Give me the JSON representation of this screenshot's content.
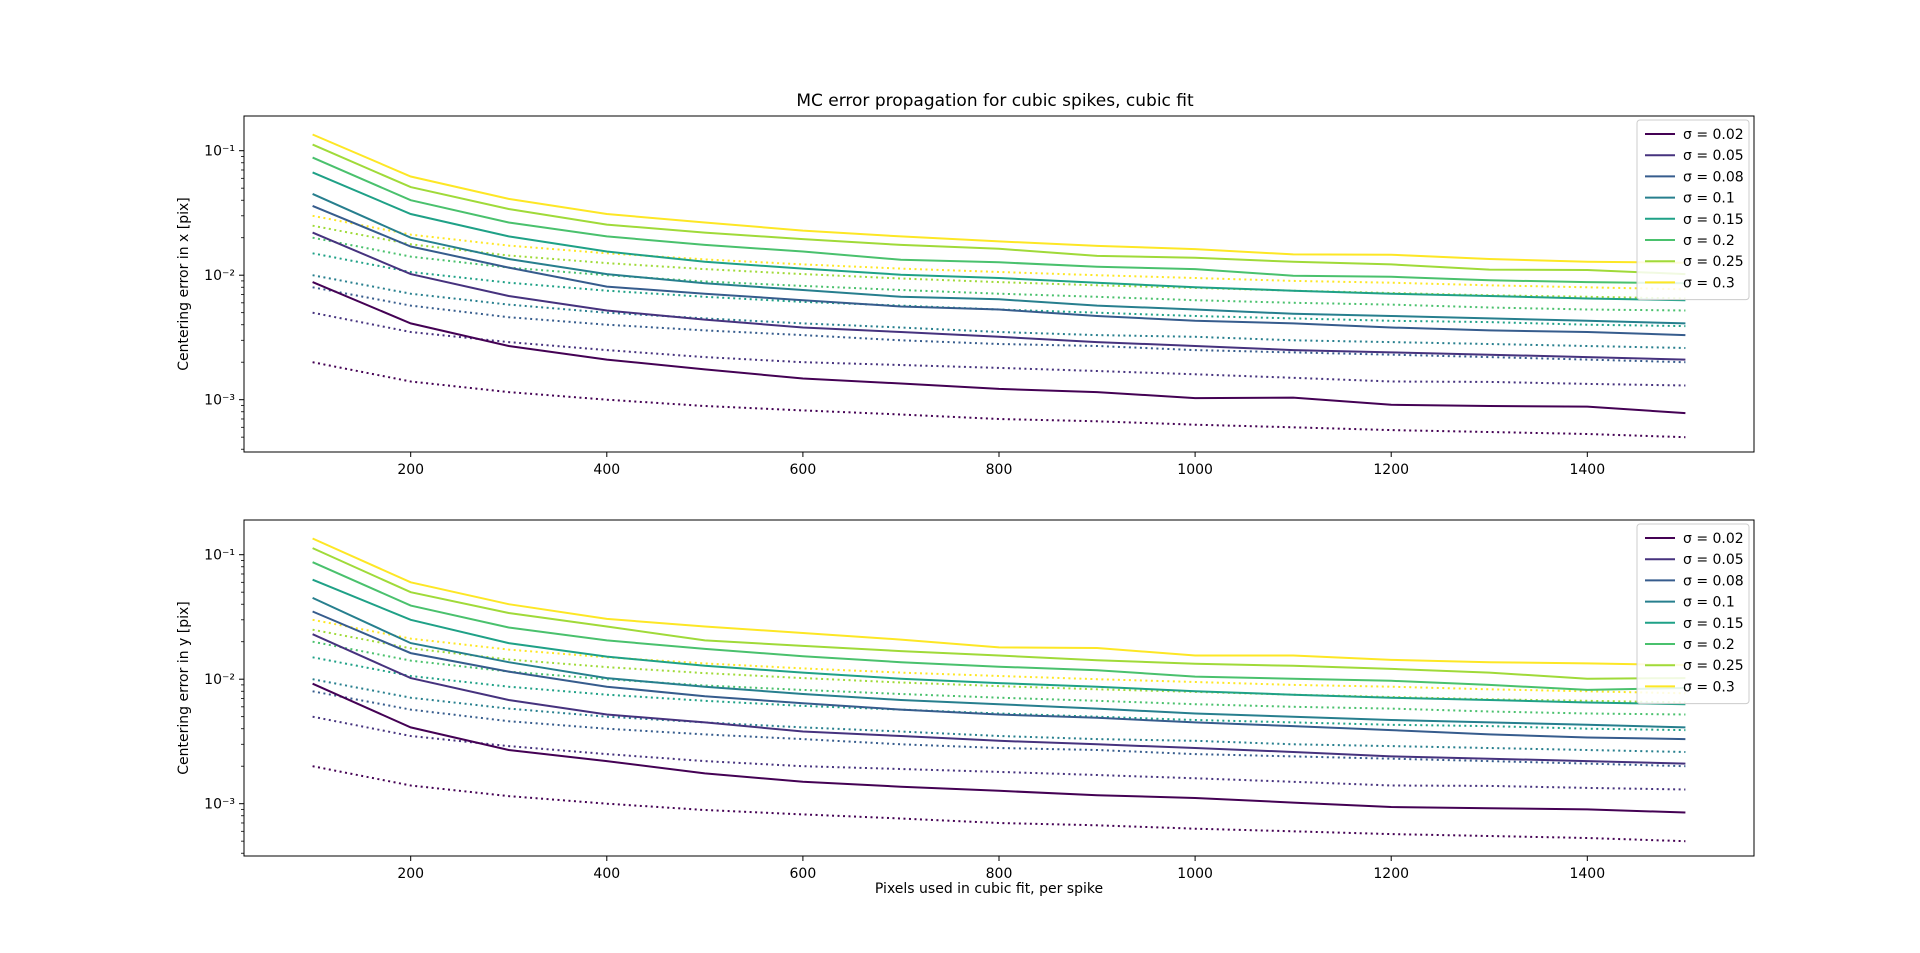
{
  "figure": {
    "title": "MC error propagation for cubic spikes, cubic fit",
    "xlabel": "Pixels used in cubic fit, per spike"
  },
  "chart_data": [
    {
      "type": "line",
      "title": "MC error propagation for cubic spikes, cubic fit",
      "xlabel": "",
      "ylabel": "Centering error in x [pix]",
      "yscale": "log",
      "xlim": [
        30,
        1570
      ],
      "ylim": [
        0.00038,
        0.19
      ],
      "xticks": [
        200,
        400,
        600,
        800,
        1000,
        1200,
        1400
      ],
      "yticks": [
        0.001,
        0.01,
        0.1
      ],
      "ytick_labels": [
        "10⁻³",
        "10⁻²",
        "10⁻¹"
      ],
      "grid": false,
      "legend_position": "top-right",
      "x": [
        100,
        200,
        300,
        400,
        500,
        600,
        700,
        800,
        900,
        1000,
        1100,
        1200,
        1300,
        1400,
        1500
      ],
      "series": [
        {
          "name": "σ = 0.02",
          "color": "#440154",
          "values": [
            0.0088,
            0.0041,
            0.0027,
            0.0021,
            0.00175,
            0.00148,
            0.00135,
            0.00122,
            0.00115,
            0.00103,
            0.00104,
            0.00091,
            0.00089,
            0.00088,
            0.00078
          ]
        },
        {
          "name": "σ = 0.05",
          "color": "#46327e",
          "values": [
            0.022,
            0.0102,
            0.0068,
            0.0052,
            0.0044,
            0.0038,
            0.0035,
            0.0032,
            0.0029,
            0.0027,
            0.0025,
            0.0024,
            0.0023,
            0.0022,
            0.0021
          ]
        },
        {
          "name": "σ = 0.08",
          "color": "#365c8d",
          "values": [
            0.036,
            0.017,
            0.0115,
            0.0081,
            0.0071,
            0.0063,
            0.0056,
            0.0053,
            0.0047,
            0.0043,
            0.0041,
            0.0038,
            0.0036,
            0.0035,
            0.0033
          ]
        },
        {
          "name": "σ = 0.1",
          "color": "#277f8e",
          "values": [
            0.045,
            0.02,
            0.0135,
            0.0102,
            0.0086,
            0.0076,
            0.0067,
            0.0064,
            0.0057,
            0.0053,
            0.0049,
            0.0047,
            0.0045,
            0.0043,
            0.0041
          ]
        },
        {
          "name": "σ = 0.15",
          "color": "#1fa187",
          "values": [
            0.067,
            0.031,
            0.0205,
            0.0155,
            0.0128,
            0.0113,
            0.0101,
            0.0095,
            0.0087,
            0.008,
            0.0075,
            0.0071,
            0.0068,
            0.0065,
            0.0063
          ]
        },
        {
          "name": "σ = 0.2",
          "color": "#4ac16d",
          "values": [
            0.088,
            0.04,
            0.0265,
            0.0205,
            0.0175,
            0.0155,
            0.0133,
            0.0127,
            0.0117,
            0.0112,
            0.0099,
            0.0097,
            0.0091,
            0.0088,
            0.0086
          ]
        },
        {
          "name": "σ = 0.25",
          "color": "#a0da39",
          "values": [
            0.112,
            0.051,
            0.034,
            0.0255,
            0.022,
            0.0195,
            0.0175,
            0.0163,
            0.0143,
            0.0138,
            0.0128,
            0.0122,
            0.0111,
            0.011,
            0.0102
          ]
        },
        {
          "name": "σ = 0.3",
          "color": "#fde725",
          "values": [
            0.135,
            0.062,
            0.041,
            0.031,
            0.0265,
            0.0228,
            0.0205,
            0.0187,
            0.0172,
            0.0162,
            0.0147,
            0.0146,
            0.0135,
            0.0128,
            0.0126
          ]
        }
      ],
      "dotted_series": [
        {
          "color": "#440154",
          "values": [
            0.002,
            0.0014,
            0.00115,
            0.001,
            0.00089,
            0.00082,
            0.00076,
            0.0007,
            0.00067,
            0.00063,
            0.0006,
            0.00057,
            0.00055,
            0.00053,
            0.0005
          ]
        },
        {
          "color": "#46327e",
          "values": [
            0.005,
            0.0035,
            0.0029,
            0.0025,
            0.0022,
            0.002,
            0.0019,
            0.0018,
            0.0017,
            0.0016,
            0.0015,
            0.0014,
            0.00139,
            0.00134,
            0.0013
          ]
        },
        {
          "color": "#365c8d",
          "values": [
            0.008,
            0.0057,
            0.0046,
            0.004,
            0.0036,
            0.0033,
            0.003,
            0.0028,
            0.0027,
            0.0025,
            0.0024,
            0.0023,
            0.0022,
            0.0021,
            0.002
          ]
        },
        {
          "color": "#277f8e",
          "values": [
            0.01,
            0.0071,
            0.0058,
            0.005,
            0.0045,
            0.0041,
            0.0038,
            0.0035,
            0.0033,
            0.0032,
            0.003,
            0.0029,
            0.0028,
            0.0027,
            0.0026
          ]
        },
        {
          "color": "#1fa187",
          "values": [
            0.015,
            0.0106,
            0.0087,
            0.0075,
            0.0067,
            0.0061,
            0.0057,
            0.0053,
            0.005,
            0.0047,
            0.0045,
            0.0043,
            0.0042,
            0.004,
            0.0039
          ]
        },
        {
          "color": "#4ac16d",
          "values": [
            0.02,
            0.0141,
            0.0115,
            0.01,
            0.0089,
            0.0082,
            0.0076,
            0.0071,
            0.0067,
            0.0063,
            0.006,
            0.0058,
            0.0055,
            0.0053,
            0.0052
          ]
        },
        {
          "color": "#a0da39",
          "values": [
            0.025,
            0.0177,
            0.0144,
            0.0125,
            0.0112,
            0.0102,
            0.0094,
            0.0088,
            0.0083,
            0.0079,
            0.0075,
            0.0072,
            0.0069,
            0.0067,
            0.0065
          ]
        },
        {
          "color": "#fde725",
          "values": [
            0.03,
            0.0212,
            0.0173,
            0.015,
            0.0134,
            0.0122,
            0.0113,
            0.0106,
            0.01,
            0.0095,
            0.009,
            0.0087,
            0.0083,
            0.008,
            0.0077
          ]
        }
      ]
    },
    {
      "type": "line",
      "title": "",
      "xlabel": "Pixels used in cubic fit, per spike",
      "ylabel": "Centering error in y [pix]",
      "yscale": "log",
      "xlim": [
        30,
        1570
      ],
      "ylim": [
        0.00038,
        0.19
      ],
      "xticks": [
        200,
        400,
        600,
        800,
        1000,
        1200,
        1400
      ],
      "yticks": [
        0.001,
        0.01,
        0.1
      ],
      "ytick_labels": [
        "10⁻³",
        "10⁻²",
        "10⁻¹"
      ],
      "grid": false,
      "legend_position": "top-right",
      "x": [
        100,
        200,
        300,
        400,
        500,
        600,
        700,
        800,
        900,
        1000,
        1100,
        1200,
        1300,
        1400,
        1500
      ],
      "series": [
        {
          "name": "σ = 0.02",
          "color": "#440154",
          "values": [
            0.0092,
            0.0041,
            0.0027,
            0.0022,
            0.00175,
            0.0015,
            0.00137,
            0.00127,
            0.00117,
            0.00111,
            0.00102,
            0.00094,
            0.00092,
            0.0009,
            0.00085
          ]
        },
        {
          "name": "σ = 0.05",
          "color": "#46327e",
          "values": [
            0.023,
            0.0102,
            0.0068,
            0.0052,
            0.0045,
            0.0038,
            0.0035,
            0.0032,
            0.003,
            0.0028,
            0.0026,
            0.0024,
            0.0023,
            0.0022,
            0.0021
          ]
        },
        {
          "name": "σ = 0.08",
          "color": "#365c8d",
          "values": [
            0.035,
            0.0162,
            0.0115,
            0.0087,
            0.0073,
            0.0064,
            0.0057,
            0.0052,
            0.0049,
            0.0045,
            0.0042,
            0.0039,
            0.0036,
            0.0034,
            0.0033
          ]
        },
        {
          "name": "σ = 0.1",
          "color": "#277f8e",
          "values": [
            0.045,
            0.0195,
            0.0137,
            0.0102,
            0.0087,
            0.0076,
            0.0068,
            0.0063,
            0.0058,
            0.0053,
            0.005,
            0.0047,
            0.0045,
            0.0043,
            0.0041
          ]
        },
        {
          "name": "σ = 0.15",
          "color": "#1fa187",
          "values": [
            0.063,
            0.03,
            0.0195,
            0.0152,
            0.0128,
            0.0113,
            0.0101,
            0.0093,
            0.0087,
            0.008,
            0.0075,
            0.0071,
            0.0068,
            0.0065,
            0.0063
          ]
        },
        {
          "name": "σ = 0.2",
          "color": "#4ac16d",
          "values": [
            0.087,
            0.039,
            0.026,
            0.0205,
            0.0175,
            0.0153,
            0.0137,
            0.0126,
            0.0118,
            0.0105,
            0.0101,
            0.0097,
            0.009,
            0.0082,
            0.0085
          ]
        },
        {
          "name": "σ = 0.25",
          "color": "#a0da39",
          "values": [
            0.113,
            0.05,
            0.034,
            0.0265,
            0.0205,
            0.0185,
            0.0168,
            0.0155,
            0.0142,
            0.0133,
            0.0128,
            0.0121,
            0.0113,
            0.0101,
            0.0102
          ]
        },
        {
          "name": "σ = 0.3",
          "color": "#fde725",
          "values": [
            0.135,
            0.06,
            0.04,
            0.0305,
            0.0265,
            0.0235,
            0.0208,
            0.018,
            0.0178,
            0.0155,
            0.0155,
            0.0143,
            0.0137,
            0.0134,
            0.013
          ]
        }
      ],
      "dotted_series": [
        {
          "color": "#440154",
          "values": [
            0.002,
            0.0014,
            0.00115,
            0.001,
            0.00089,
            0.00082,
            0.00076,
            0.0007,
            0.00067,
            0.00063,
            0.0006,
            0.00057,
            0.00055,
            0.00053,
            0.0005
          ]
        },
        {
          "color": "#46327e",
          "values": [
            0.005,
            0.0035,
            0.0029,
            0.0025,
            0.0022,
            0.002,
            0.0019,
            0.0018,
            0.0017,
            0.0016,
            0.0015,
            0.0014,
            0.00139,
            0.00134,
            0.0013
          ]
        },
        {
          "color": "#365c8d",
          "values": [
            0.008,
            0.0057,
            0.0046,
            0.004,
            0.0036,
            0.0033,
            0.003,
            0.0028,
            0.0027,
            0.0025,
            0.0024,
            0.0023,
            0.0022,
            0.0021,
            0.002
          ]
        },
        {
          "color": "#277f8e",
          "values": [
            0.01,
            0.0071,
            0.0058,
            0.005,
            0.0045,
            0.0041,
            0.0038,
            0.0035,
            0.0033,
            0.0032,
            0.003,
            0.0029,
            0.0028,
            0.0027,
            0.0026
          ]
        },
        {
          "color": "#1fa187",
          "values": [
            0.015,
            0.0106,
            0.0087,
            0.0075,
            0.0067,
            0.0061,
            0.0057,
            0.0053,
            0.005,
            0.0047,
            0.0045,
            0.0043,
            0.0042,
            0.004,
            0.0039
          ]
        },
        {
          "color": "#4ac16d",
          "values": [
            0.02,
            0.0141,
            0.0115,
            0.01,
            0.0089,
            0.0082,
            0.0076,
            0.0071,
            0.0067,
            0.0063,
            0.006,
            0.0058,
            0.0055,
            0.0053,
            0.0052
          ]
        },
        {
          "color": "#a0da39",
          "values": [
            0.025,
            0.0177,
            0.0144,
            0.0125,
            0.0112,
            0.0102,
            0.0094,
            0.0088,
            0.0083,
            0.0079,
            0.0075,
            0.0072,
            0.0069,
            0.0067,
            0.0065
          ]
        },
        {
          "color": "#fde725",
          "values": [
            0.03,
            0.0212,
            0.0173,
            0.015,
            0.0134,
            0.0122,
            0.0113,
            0.0106,
            0.01,
            0.0095,
            0.009,
            0.0087,
            0.0083,
            0.008,
            0.0077
          ]
        }
      ]
    }
  ]
}
